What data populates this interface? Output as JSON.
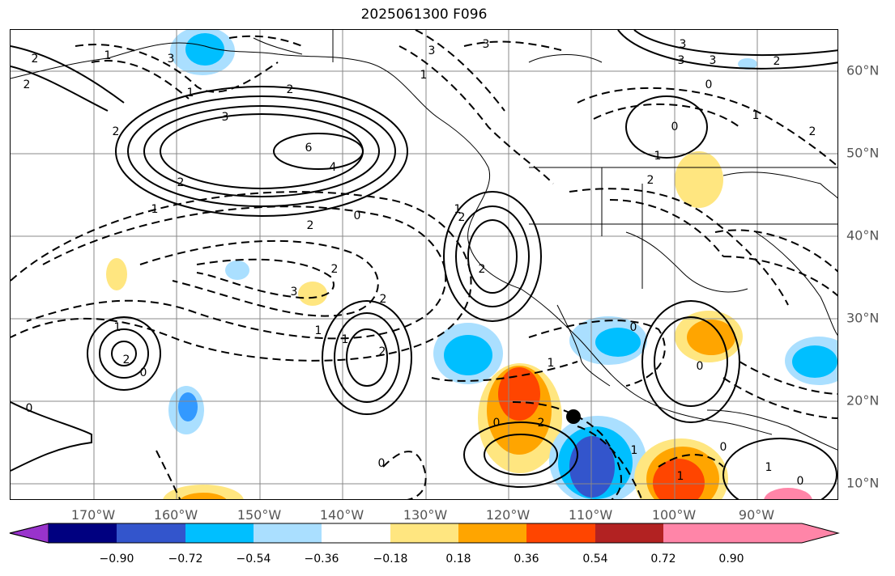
{
  "title": "2025061300 F096",
  "map": {
    "longitude_labels": [
      "170°W",
      "160°W",
      "150°W",
      "140°W",
      "130°W",
      "120°W",
      "110°W",
      "100°W",
      "90°W"
    ],
    "latitude_labels": [
      "60°N",
      "50°N",
      "40°N",
      "30°N",
      "20°N",
      "10°N"
    ],
    "contour_labels": [
      "2",
      "3",
      "1",
      "3",
      "2",
      "1",
      "2",
      "3",
      "2",
      "3",
      "3",
      "6",
      "4",
      "2",
      "1",
      "2",
      "3",
      "1",
      "0",
      "2",
      "0",
      "2",
      "2",
      "1",
      "2",
      "2",
      "1",
      "0",
      "1",
      "1",
      "2",
      "0",
      "0",
      "1",
      "2",
      "0",
      "1",
      "0",
      "1",
      "1",
      "0",
      "3",
      "2",
      "3",
      "2",
      "0",
      "1",
      "2",
      "0",
      "1",
      "0"
    ],
    "marker": "storm-center-dot"
  },
  "colorbar": {
    "ticks": [
      "−0.90",
      "−0.72",
      "−0.54",
      "−0.36",
      "−0.18",
      "0.18",
      "0.36",
      "0.54",
      "0.72",
      "0.90"
    ],
    "colors": [
      "#9933cc",
      "#000080",
      "#3355cc",
      "#00bfff",
      "#aadfff",
      "#ffffff",
      "#ffe680",
      "#ffa500",
      "#ff4500",
      "#b22222",
      "#ff85a8"
    ]
  }
}
